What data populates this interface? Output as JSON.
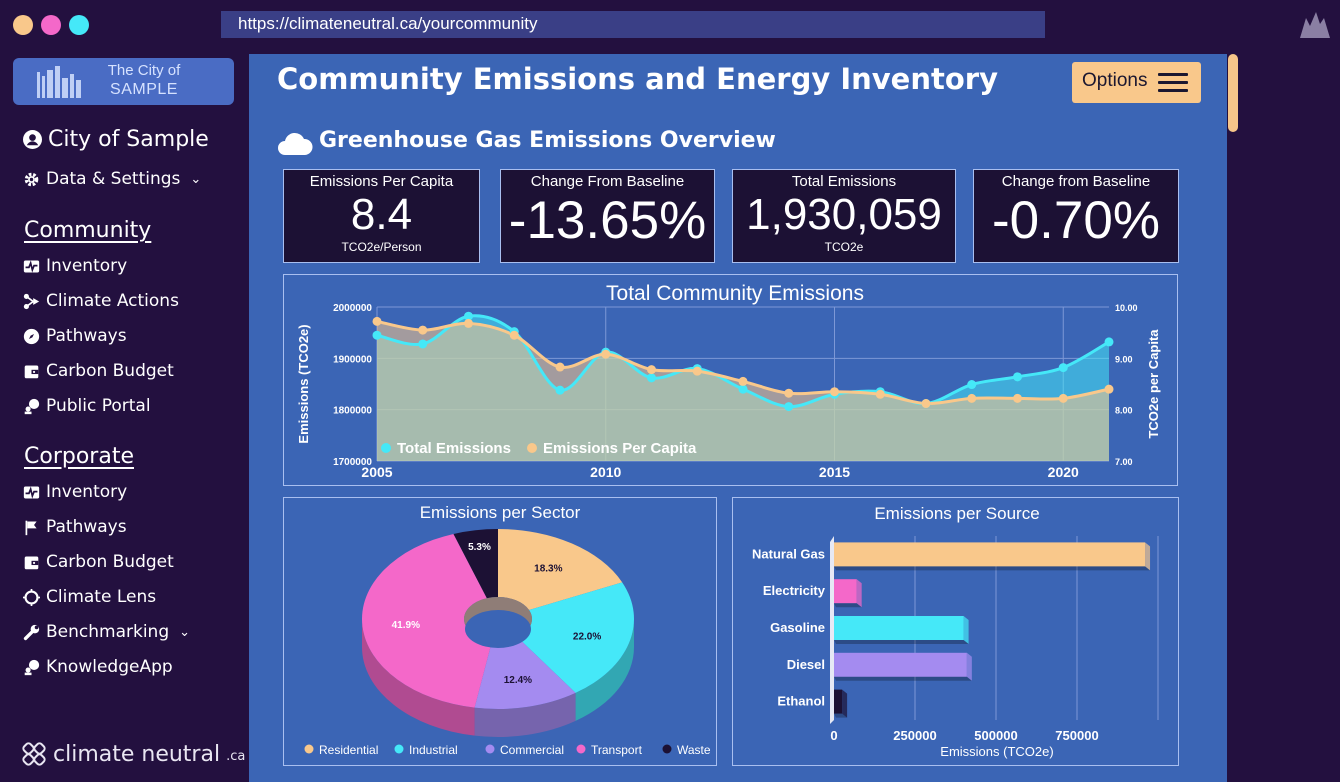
{
  "browser": {
    "url": "https://climateneutral.ca/yourcommunity"
  },
  "sidebar": {
    "logo_line1": "The City of",
    "logo_line2": "SAMPLE",
    "city_name": "City of Sample",
    "data_settings": "Data & Settings",
    "community_heading": "Community",
    "community_items": [
      "Inventory",
      "Climate Actions",
      "Pathways",
      "Carbon Budget",
      "Public Portal"
    ],
    "corporate_heading": "Corporate",
    "corporate_items": [
      "Inventory",
      "Pathways",
      "Carbon Budget",
      "Climate Lens",
      "Benchmarking",
      "KnowledgeApp"
    ],
    "footer_brand": "climate neutral",
    "footer_suffix": ".ca"
  },
  "header": {
    "title": "Community Emissions and Energy Inventory",
    "options_label": "Options",
    "section_title": "Greenhouse Gas Emissions Overview"
  },
  "kpis": [
    {
      "label": "Emissions Per Capita",
      "value": "8.4",
      "unit": "TCO2e/Person"
    },
    {
      "label": "Change From Baseline",
      "value": "-13.65%",
      "unit": ""
    },
    {
      "label": "Total Emissions",
      "value": "1,930,059",
      "unit": "TCO2e"
    },
    {
      "label": "Change from Baseline",
      "value": "-0.70%",
      "unit": ""
    }
  ],
  "colors": {
    "peach": "#f9c88b",
    "cyan": "#45e8f8",
    "violet": "#a48bf0",
    "pink": "#f468c9",
    "navy": "#1c1134"
  },
  "chart_data": [
    {
      "type": "area",
      "title": "Total Community Emissions",
      "ylabel": "Emissions (TCO2e)",
      "y2label": "TCO2e per Capita",
      "x": [
        2005,
        2006,
        2007,
        2008,
        2009,
        2010,
        2011,
        2012,
        2013,
        2014,
        2015,
        2016,
        2017,
        2018,
        2019,
        2020,
        2021
      ],
      "xticks": [
        2005,
        2010,
        2015,
        2020
      ],
      "ylim": [
        1700000,
        2000000
      ],
      "yticks": [
        "2000000",
        "1900000",
        "1800000",
        "1700000"
      ],
      "y2lim": [
        7.0,
        10.0
      ],
      "y2ticks": [
        "10.00",
        "9.00",
        "8.00",
        "7.00"
      ],
      "legend_position": "bottom-left",
      "series": [
        {
          "name": "Total Emissions",
          "axis": "left",
          "color": "#45e8f8",
          "values": [
            1945000,
            1928000,
            1982000,
            1952000,
            1838000,
            1912000,
            1862000,
            1880000,
            1840000,
            1806000,
            1830000,
            1835000,
            1812000,
            1849000,
            1864000,
            1882000,
            1932000
          ]
        },
        {
          "name": "Emissions Per Capita",
          "axis": "right",
          "color": "#f9c88b",
          "values": [
            9.72,
            9.55,
            9.68,
            9.45,
            8.83,
            9.08,
            8.78,
            8.75,
            8.55,
            8.32,
            8.35,
            8.3,
            8.12,
            8.22,
            8.22,
            8.22,
            8.4
          ]
        }
      ]
    },
    {
      "type": "pie",
      "title": "Emissions per Sector",
      "categories": [
        "Residential",
        "Industrial",
        "Commercial",
        "Transport",
        "Waste"
      ],
      "values": [
        18.3,
        22.0,
        12.4,
        41.9,
        5.3
      ],
      "labels": [
        "18.3%",
        "22.0%",
        "12.4%",
        "41.9%",
        "5.3%"
      ],
      "colors": [
        "#f9c88b",
        "#45e8f8",
        "#a48bf0",
        "#f468c9",
        "#1c1134"
      ],
      "legend_position": "bottom"
    },
    {
      "type": "bar",
      "orientation": "horizontal",
      "title": "Emissions per Source",
      "xlabel": "Emissions (TCO2e)",
      "categories": [
        "Natural Gas",
        "Electricity",
        "Gasoline",
        "Diesel",
        "Ethanol"
      ],
      "values": [
        960000,
        70000,
        400000,
        410000,
        25000
      ],
      "colors": [
        "#f9c88b",
        "#f468c9",
        "#45e8f8",
        "#a48bf0",
        "#1c1134"
      ],
      "xlim": [
        0,
        1000000
      ],
      "xticks": [
        "0",
        "250000",
        "500000",
        "750000"
      ]
    }
  ]
}
